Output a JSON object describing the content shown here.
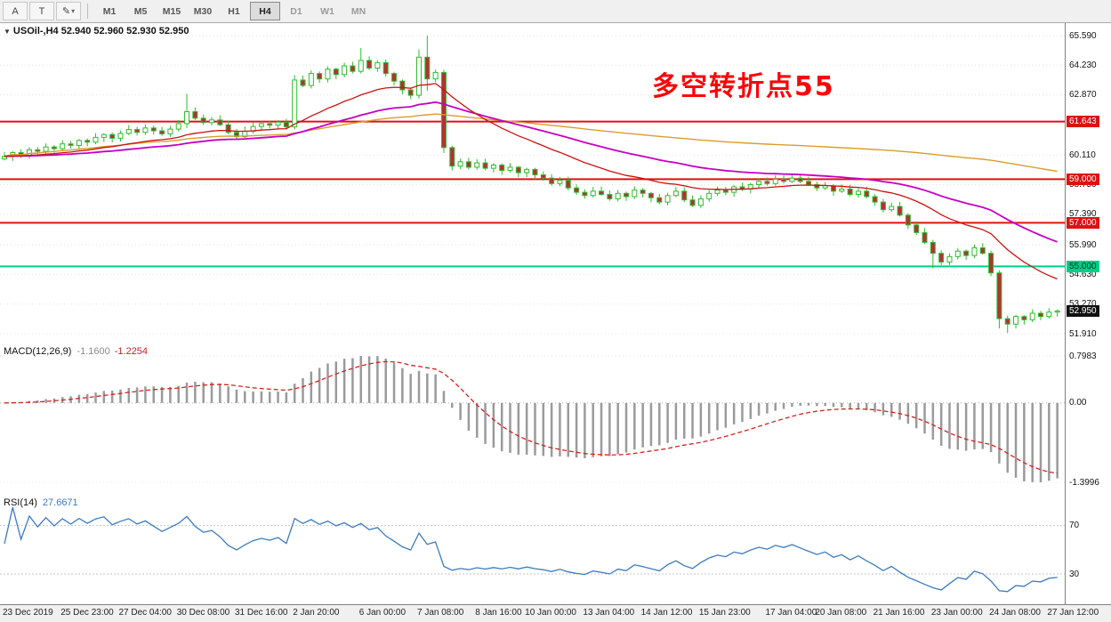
{
  "toolbar": {
    "left_buttons": [
      {
        "name": "a",
        "label": "A"
      },
      {
        "name": "t",
        "label": "T"
      },
      {
        "name": "styles",
        "label": "✎"
      }
    ],
    "dropdown_caret": "▾",
    "timeframes": [
      "M1",
      "M5",
      "M15",
      "M30",
      "H1",
      "H4",
      "D1",
      "W1",
      "MN"
    ],
    "active_timeframe": "H4",
    "dim_timeframes": [
      "D1",
      "W1",
      "MN"
    ]
  },
  "main": {
    "collapse_icon": "▼",
    "title": "USOil-,H4 52.940 52.960 52.930 52.950",
    "annotation": "多空转折点55"
  },
  "macd": {
    "name": "MACD(12,26,9)",
    "value_main": "-1.1600",
    "value_signal": "-1.2254",
    "axis_labels": [
      "0.7983",
      "0.00",
      "-1.3996"
    ]
  },
  "rsi": {
    "name": "RSI(14)",
    "value": "27.6671",
    "levels": [
      "70",
      "30"
    ]
  },
  "chart_data": {
    "type": "candlestick",
    "symbol": "USOil-",
    "timeframe": "H4",
    "ohlc_current": {
      "open": "52.940",
      "high": "52.960",
      "low": "52.930",
      "close": "52.950"
    },
    "price_axis": {
      "grid": [
        {
          "text": "65.590",
          "price": 65.59
        },
        {
          "text": "64.230",
          "price": 64.23
        },
        {
          "text": "62.870",
          "price": 62.87
        },
        {
          "text": "60.110",
          "price": 60.11
        },
        {
          "text": "58.750",
          "price": 58.75
        },
        {
          "text": "57.390",
          "price": 57.39
        },
        {
          "text": "55.990",
          "price": 55.99
        },
        {
          "text": "54.630",
          "price": 54.63
        },
        {
          "text": "53.270",
          "price": 53.27
        },
        {
          "text": "51.910",
          "price": 51.91
        }
      ]
    },
    "hlines": [
      {
        "text": "61.643",
        "price": 61.643,
        "color": "#dd1111",
        "text_color": "#ffffff"
      },
      {
        "text": "59.000",
        "price": 59.0,
        "color": "#dd1111",
        "text_color": "#ffffff"
      },
      {
        "text": "57.000",
        "price": 57.0,
        "color": "#dd1111",
        "text_color": "#ffffff"
      },
      {
        "text": "55.000",
        "price": 55.0,
        "color": "#00cd87",
        "text_color": "#00331f"
      }
    ],
    "current": {
      "text": "52.950",
      "price": 52.95
    },
    "candles": {
      "closes": [
        60.05,
        60.22,
        60.1,
        60.35,
        60.28,
        60.48,
        60.4,
        60.62,
        60.55,
        60.78,
        60.7,
        60.92,
        61.05,
        60.88,
        61.1,
        61.28,
        61.15,
        61.35,
        61.22,
        61.08,
        61.3,
        61.55,
        62.1,
        61.8,
        61.6,
        61.72,
        61.5,
        61.15,
        60.95,
        61.2,
        61.42,
        61.55,
        61.48,
        61.62,
        61.4,
        63.55,
        63.3,
        63.85,
        63.6,
        64.05,
        63.8,
        64.2,
        63.95,
        64.45,
        64.1,
        64.35,
        63.85,
        63.5,
        63.1,
        62.85,
        64.6,
        63.6,
        63.9,
        60.45,
        59.6,
        59.8,
        59.55,
        59.75,
        59.5,
        59.65,
        59.4,
        59.55,
        59.3,
        59.45,
        59.2,
        59.05,
        58.8,
        58.95,
        58.6,
        58.4,
        58.25,
        58.45,
        58.3,
        58.1,
        58.35,
        58.2,
        58.5,
        58.35,
        58.15,
        57.95,
        58.25,
        58.45,
        58.05,
        57.8,
        58.1,
        58.35,
        58.5,
        58.4,
        58.65,
        58.55,
        58.75,
        58.9,
        58.8,
        59.0,
        58.9,
        59.05,
        58.9,
        58.75,
        58.6,
        58.7,
        58.45,
        58.55,
        58.3,
        58.45,
        58.2,
        57.95,
        57.6,
        57.75,
        57.35,
        56.9,
        56.55,
        56.1,
        55.6,
        55.2,
        55.45,
        55.7,
        55.5,
        55.85,
        55.6,
        54.7,
        52.6,
        52.35,
        52.7,
        52.55,
        52.85,
        52.7,
        52.9,
        52.95
      ],
      "overrides": {
        "22": [
          61.55,
          62.92,
          61.35,
          62.1
        ],
        "35": [
          61.4,
          63.78,
          61.28,
          63.55
        ],
        "43": [
          63.95,
          65.02,
          63.85,
          64.45
        ],
        "50": [
          62.85,
          64.95,
          62.7,
          64.6
        ],
        "51": [
          64.6,
          65.59,
          63.05,
          63.6
        ],
        "53": [
          63.9,
          64.02,
          60.2,
          60.45
        ],
        "112": [
          56.1,
          56.22,
          54.92,
          55.6
        ],
        "119": [
          55.6,
          55.72,
          54.55,
          54.7
        ],
        "120": [
          54.7,
          54.82,
          52.15,
          52.6
        ],
        "121": [
          52.6,
          52.75,
          51.95,
          52.35
        ]
      }
    },
    "moving_averages": [
      {
        "period": 120,
        "type": "sma",
        "color": "#d99e2b",
        "width": 1.4
      },
      {
        "period": 45,
        "type": "ema",
        "color": "#c400c4",
        "width": 1.8
      },
      {
        "period": 20,
        "type": "ema",
        "color": "#cc1111",
        "width": 1.3
      }
    ],
    "macd_settings": {
      "fast": 12,
      "slow": 26,
      "signal": 9
    },
    "rsi_settings": {
      "period": 14
    },
    "time_axis": [
      {
        "text": "23 Dec 2019",
        "i": 0
      },
      {
        "text": "25 Dec 23:00",
        "i": 7
      },
      {
        "text": "27 Dec 04:00",
        "i": 14
      },
      {
        "text": "30 Dec 08:00",
        "i": 21
      },
      {
        "text": "31 Dec 16:00",
        "i": 28
      },
      {
        "text": "2 Jan 20:00",
        "i": 35
      },
      {
        "text": "6 Jan 00:00",
        "i": 43
      },
      {
        "text": "7 Jan 08:00",
        "i": 50
      },
      {
        "text": "8 Jan 16:00",
        "i": 57
      },
      {
        "text": "10 Jan 00:00",
        "i": 63
      },
      {
        "text": "13 Jan 04:00",
        "i": 70
      },
      {
        "text": "14 Jan 12:00",
        "i": 77
      },
      {
        "text": "15 Jan 23:00",
        "i": 84
      },
      {
        "text": "17 Jan 04:00",
        "i": 92
      },
      {
        "text": "20 Jan 08:00",
        "i": 98
      },
      {
        "text": "21 Jan 16:00",
        "i": 105
      },
      {
        "text": "23 Jan 00:00",
        "i": 112
      },
      {
        "text": "24 Jan 08:00",
        "i": 119
      },
      {
        "text": "27 Jan 12:00",
        "i": 126
      }
    ],
    "colors": {
      "candle": "#2dbd2d",
      "up_fill": "#ffffff",
      "bear_fill": "#b03333",
      "macd_hist": "#9a9a9a",
      "macd_signal": "#d42222",
      "rsi_line": "#3b7bbf",
      "grid": "#e0e0e0"
    }
  }
}
